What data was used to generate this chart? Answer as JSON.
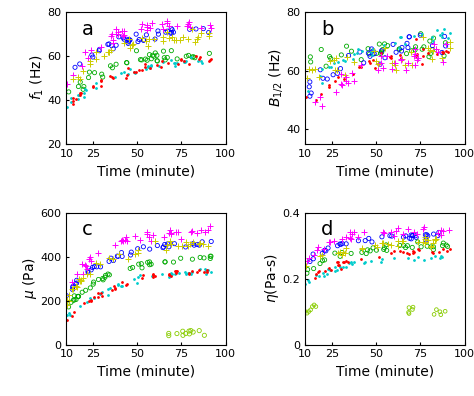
{
  "figure_bg": "#ffffff",
  "xlim": [
    10,
    100
  ],
  "xticks": [
    10,
    25,
    50,
    75,
    100
  ],
  "xticklabels": [
    "10",
    "25",
    "50",
    "75",
    "100"
  ],
  "xlabel": "Time (minute)",
  "panel_a": {
    "ylabel": "$f_1$ (Hz)",
    "ylim": [
      20,
      80
    ],
    "yticks": [
      20,
      40,
      60,
      80
    ]
  },
  "panel_b": {
    "ylabel": "$B_{1/2}$ (Hz)",
    "ylim": [
      35,
      80
    ],
    "yticks": [
      40,
      60,
      80
    ]
  },
  "panel_c": {
    "ylabel": "$\\mu$ (Pa)",
    "ylim": [
      0,
      600
    ],
    "yticks": [
      0,
      200,
      400,
      600
    ]
  },
  "panel_d": {
    "ylabel": "$\\eta$(Pa-s)",
    "ylim": [
      0,
      0.4
    ],
    "yticks": [
      0,
      0.2,
      0.4
    ]
  },
  "BLUE": "#0000FF",
  "GREEN": "#00AA00",
  "MAGENTA": "#FF00FF",
  "YGOLD": "#CCCC00",
  "CYAN": "#00CCCC",
  "RED": "#FF0000",
  "LIME": "#88CC00",
  "label_fontsize": 10,
  "tick_fontsize": 8,
  "panel_label_fontsize": 14
}
